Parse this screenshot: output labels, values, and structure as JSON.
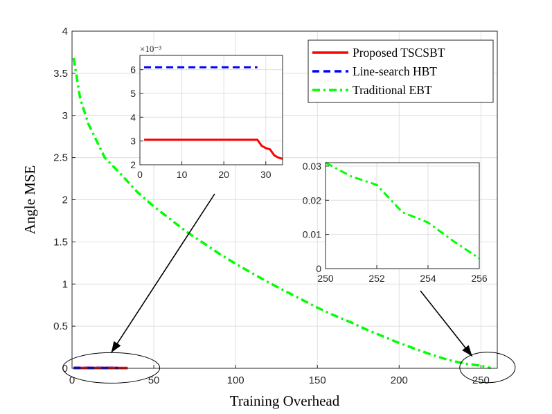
{
  "chart_data": [
    {
      "type": "line",
      "xlabel": "Training Overhead",
      "ylabel": "Angle MSE",
      "xlim": [
        0,
        260
      ],
      "ylim": [
        0,
        4
      ],
      "xticks": [
        "0",
        "50",
        "100",
        "150",
        "200",
        "250"
      ],
      "yticks": [
        "0",
        "0.5",
        "1",
        "1.5",
        "2",
        "2.5",
        "3",
        "3.5",
        "4"
      ],
      "grid": true,
      "legend_position": "top-right",
      "series": [
        {
          "name": "Proposed TSCSBT",
          "color": "#ff0000",
          "style": "solid",
          "x": [
            1,
            34
          ],
          "y": [
            0.003,
            0.0022
          ]
        },
        {
          "name": "Line-search HBT",
          "color": "#0000ff",
          "style": "dashed",
          "x": [
            1,
            28
          ],
          "y": [
            0.0061,
            0.0061
          ]
        },
        {
          "name": "Traditional EBT",
          "color": "#00ff00",
          "style": "dashdot",
          "x": [
            1,
            5,
            10,
            20,
            30,
            40,
            50,
            60,
            70,
            80,
            90,
            100,
            110,
            120,
            130,
            140,
            150,
            160,
            170,
            180,
            190,
            200,
            210,
            220,
            230,
            240,
            250,
            256
          ],
          "y": [
            3.68,
            3.2,
            2.9,
            2.5,
            2.3,
            2.09,
            1.92,
            1.77,
            1.62,
            1.49,
            1.36,
            1.24,
            1.13,
            1.02,
            0.92,
            0.82,
            0.72,
            0.63,
            0.55,
            0.46,
            0.38,
            0.3,
            0.23,
            0.16,
            0.1,
            0.055,
            0.031,
            0.003
          ]
        }
      ],
      "annotations": [
        {
          "type": "ellipse",
          "center_x": 24,
          "center_y": 0.005,
          "target_inset": "left"
        },
        {
          "type": "ellipse",
          "center_x": 254,
          "center_y": 0.01,
          "target_inset": "right"
        }
      ]
    },
    {
      "type": "line",
      "role": "inset-zoom-left",
      "exponent_label": "×10⁻³",
      "xlim": [
        0,
        34
      ],
      "ylim": [
        2,
        6.6
      ],
      "xticks": [
        "0",
        "10",
        "20",
        "30"
      ],
      "yticks": [
        "2",
        "3",
        "4",
        "5",
        "6"
      ],
      "grid": true,
      "series": [
        {
          "name": "Proposed TSCSBT",
          "color": "#ff0000",
          "style": "solid",
          "x": [
            1,
            28,
            29,
            30,
            31,
            32,
            33,
            34
          ],
          "y": [
            3.05,
            3.05,
            2.8,
            2.7,
            2.65,
            2.4,
            2.3,
            2.25
          ]
        },
        {
          "name": "Line-search HBT",
          "color": "#0000ff",
          "style": "dashed",
          "x": [
            1,
            28
          ],
          "y": [
            6.1,
            6.1
          ]
        }
      ]
    },
    {
      "type": "line",
      "role": "inset-zoom-right",
      "xlim": [
        250,
        256
      ],
      "ylim": [
        0,
        0.031
      ],
      "xticks": [
        "250",
        "252",
        "254",
        "256"
      ],
      "yticks": [
        "0",
        "0.01",
        "0.02",
        "0.03"
      ],
      "grid": true,
      "series": [
        {
          "name": "Traditional EBT",
          "color": "#00ff00",
          "style": "dashdot",
          "x": [
            250,
            251,
            252,
            253,
            254,
            255,
            256
          ],
          "y": [
            0.031,
            0.027,
            0.0245,
            0.0165,
            0.0135,
            0.008,
            0.003
          ]
        }
      ]
    }
  ]
}
